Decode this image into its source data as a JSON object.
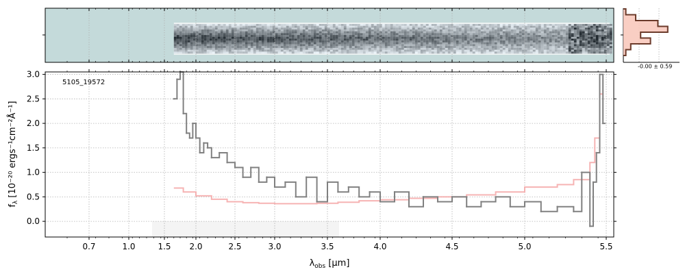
{
  "figure": {
    "object_id": "5105_19572",
    "xlabel": "λobs [μm]",
    "xlabel_main": "λ",
    "xlabel_sub": "obs",
    "xlabel_unit": " [μm]",
    "ylabel": "fλ [10⁻²⁰ ergs⁻¹cm⁻²Å⁻¹]",
    "ylabel_text": "f",
    "ylabel_sub": "λ",
    "ylabel_unit": " [10⁻²⁰ ergs⁻¹cm⁻²Å⁻¹]",
    "hist_label": "-0.00 ± 0.59"
  },
  "colors": {
    "spec2d_bg": "#c4dada",
    "spectrum": "#808080",
    "model": "#f5a6a6",
    "hist_line": "#6b3a2a",
    "hist_fill": "#f8c6b8",
    "grid": "#b0b0b0"
  },
  "chart_data": [
    {
      "type": "line",
      "name": "1d-spectrum",
      "xlim_axis": [
        0.6,
        5.52
      ],
      "x_scale": "custom-warped",
      "xticks": [
        {
          "label": "0.7",
          "v": 0.7
        },
        {
          "label": "1.0",
          "v": 1.0
        },
        {
          "label": "1.5",
          "v": 1.5
        },
        {
          "label": "2.0",
          "v": 2.0
        },
        {
          "label": "2.5",
          "v": 2.5
        },
        {
          "label": "3.0",
          "v": 3.0
        },
        {
          "label": "3.5",
          "v": 3.5
        },
        {
          "label": "4.0",
          "v": 4.0
        },
        {
          "label": "4.5",
          "v": 4.5
        },
        {
          "label": "5.0",
          "v": 5.0
        },
        {
          "label": "5.5",
          "v": 5.5
        }
      ],
      "ylim": [
        -0.32,
        3.05
      ],
      "yticks": [
        "0.0",
        "0.5",
        "1.0",
        "1.5",
        "2.0",
        "2.5",
        "3.0"
      ],
      "grid": true,
      "series": [
        {
          "role": "data",
          "x": [
            1.65,
            1.7,
            1.75,
            1.8,
            1.85,
            1.9,
            1.95,
            2.0,
            2.05,
            2.1,
            2.15,
            2.2,
            2.3,
            2.4,
            2.5,
            2.6,
            2.7,
            2.8,
            2.9,
            3.0,
            3.1,
            3.2,
            3.3,
            3.4,
            3.5,
            3.6,
            3.7,
            3.8,
            3.9,
            4.0,
            4.1,
            4.2,
            4.3,
            4.4,
            4.5,
            4.6,
            4.7,
            4.8,
            4.9,
            5.0,
            5.1,
            5.2,
            5.3,
            5.35,
            5.4,
            5.42,
            5.44,
            5.46,
            5.48
          ],
          "y": [
            2.5,
            2.9,
            3.05,
            2.2,
            1.8,
            1.7,
            2.0,
            1.7,
            1.4,
            1.6,
            1.5,
            1.3,
            1.4,
            1.2,
            1.1,
            0.9,
            1.1,
            0.8,
            0.9,
            0.7,
            0.8,
            0.5,
            0.9,
            0.4,
            0.8,
            0.6,
            0.7,
            0.5,
            0.6,
            0.4,
            0.6,
            0.3,
            0.5,
            0.4,
            0.5,
            0.3,
            0.4,
            0.5,
            0.3,
            0.4,
            0.2,
            0.3,
            0.2,
            1.0,
            -0.1,
            0.8,
            1.4,
            3.0,
            2.0
          ]
        },
        {
          "role": "model",
          "x": [
            1.65,
            1.8,
            2.0,
            2.2,
            2.4,
            2.6,
            2.8,
            3.0,
            3.2,
            3.4,
            3.6,
            3.8,
            4.0,
            4.2,
            4.4,
            4.6,
            4.8,
            5.0,
            5.2,
            5.3,
            5.4,
            5.43,
            5.46
          ],
          "y": [
            0.68,
            0.6,
            0.52,
            0.45,
            0.4,
            0.38,
            0.37,
            0.36,
            0.36,
            0.37,
            0.39,
            0.42,
            0.44,
            0.47,
            0.5,
            0.54,
            0.6,
            0.7,
            0.75,
            0.85,
            1.2,
            1.7,
            2.6
          ]
        }
      ]
    },
    {
      "type": "histogram",
      "name": "residual-histogram",
      "bins_y": [
        -4,
        -3,
        -2,
        -1,
        0,
        1,
        2,
        3,
        4
      ],
      "counts": [
        0.05,
        0.15,
        0.55,
        0.35,
        0.9,
        0.7,
        0.25,
        0.05
      ]
    }
  ]
}
